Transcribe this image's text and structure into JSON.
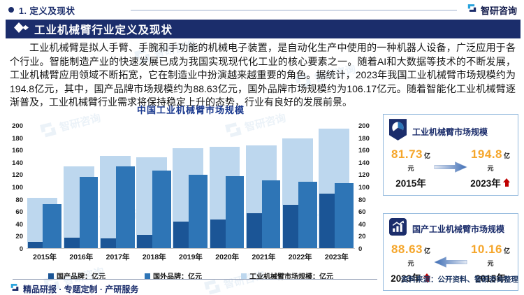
{
  "header": {
    "section_label": "1. 定义及现状",
    "brand": "智研咨询"
  },
  "title_bar": {
    "title": "工业机械臂行业定义及现状"
  },
  "paragraph": {
    "text": "工业机械臂是拟人手臂、手腕和手功能的机械电子装置，是自动化生产中使用的一种机器人设备，广泛应用于各个行业。智能制造产业的快速发展已成为我国实现现代化工业的核心要素之一。随着AI和大数据等技术的不断发展，工业机械臂应用领域不断拓宽，它在制造业中扮演越来越重要的角色。据统计，2023年我国工业机械臂市场规模约为194.8亿元，其中，国产品牌市场规模约为88.63亿元，国外品牌市场规模约为106.17亿元。随着智能化工业机械臂逐渐普及，工业机械臂行业需求将保持稳定上升的态势，行业有良好的发展前景。"
  },
  "chart_data": {
    "type": "bar",
    "title": "中国工业机械臂市场规模",
    "categories": [
      "2015年",
      "2016年",
      "2017年",
      "2018年",
      "2019年",
      "2020年",
      "2021年",
      "2022年",
      "2023年"
    ],
    "series": [
      {
        "name": "国产品牌：亿元",
        "color": "#1B5596",
        "values": [
          10.16,
          17.5,
          16.0,
          21.5,
          43.0,
          47.0,
          57.0,
          70.5,
          88.63
        ]
      },
      {
        "name": "国外品牌：亿元",
        "color": "#2E75B6",
        "values": [
          71.57,
          116.0,
          133.5,
          126.0,
          119.0,
          117.5,
          110.0,
          108.0,
          106.17
        ]
      },
      {
        "name": "工业机械臂市场规模：亿元",
        "color": "#BDD7EE",
        "values": [
          81.73,
          133.5,
          149.5,
          147.5,
          162.0,
          164.5,
          167.0,
          178.5,
          194.8
        ]
      }
    ],
    "xlabel": "",
    "ylabel": "",
    "ylim": [
      0,
      200
    ],
    "ytick_step": 20,
    "yticks": [
      0,
      20,
      40,
      60,
      80,
      100,
      120,
      140,
      160,
      180,
      200
    ],
    "grid": false,
    "legend_position": "bottom",
    "axis_sides": "both"
  },
  "cards": [
    {
      "title": "工业机械臂市场规模",
      "left": {
        "value": "81.73",
        "unit": "亿元",
        "year": "2015年"
      },
      "right": {
        "value": "194.8",
        "unit": "亿元",
        "year": "2023年"
      },
      "arrow_direction": "right"
    },
    {
      "title": "国产工业机械臂市场规模",
      "left": {
        "value": "88.63",
        "unit": "亿元",
        "year": "2023年"
      },
      "right": {
        "value": "10.16",
        "unit": "亿元",
        "year": "2015年"
      },
      "arrow_direction": "left"
    }
  ],
  "source": {
    "text": "资料来源：公开资料、智研咨询整理"
  },
  "footer": {
    "tagline": "精品研报 · 专题定制 · 产研服务"
  },
  "watermark": {
    "text": "智研咨询"
  }
}
